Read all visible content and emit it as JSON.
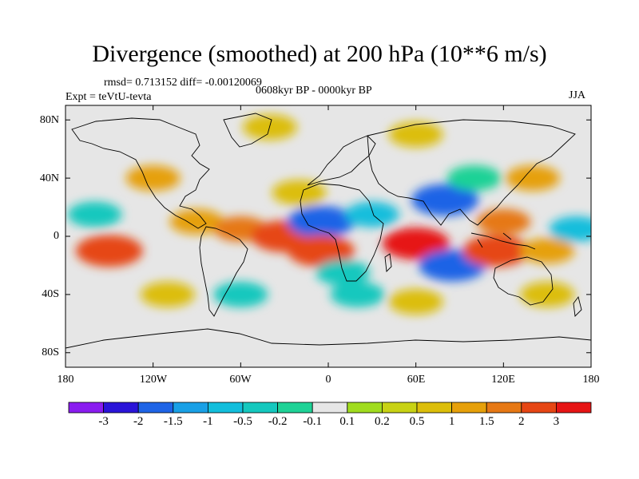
{
  "title": "Divergence (smoothed) at 200 hPa (10**6 m/s)",
  "stats": "rmsd= 0.713152 diff= -0.00120069",
  "period": "0608kyr BP - 0000kyr BP",
  "experiment": "Expt = teVtU-tevta",
  "season": "JJA",
  "lat_labels": [
    "80N",
    "40N",
    "0",
    "40S",
    "80S"
  ],
  "lon_labels": [
    "180",
    "120W",
    "60W",
    "0",
    "60E",
    "120E",
    "180"
  ],
  "colorbar": {
    "labels": [
      "-3",
      "-2",
      "-1.5",
      "-1",
      "-0.5",
      "-0.2",
      "-0.1",
      "0.1",
      "0.2",
      "0.5",
      "1",
      "1.5",
      "2",
      "3"
    ],
    "colors": [
      "#8a1cf0",
      "#2a14d8",
      "#1e64e6",
      "#19a0e6",
      "#12bedc",
      "#14c8be",
      "#1ed296",
      "#e6e6e6",
      "#a0dc1e",
      "#c8d214",
      "#dcbe0a",
      "#e6a00a",
      "#e67814",
      "#e64614",
      "#e61414"
    ]
  },
  "chart_data": {
    "type": "heatmap",
    "title": "Divergence (smoothed) at 200 hPa (10**6 m/s)",
    "xlim": [
      -180,
      180
    ],
    "ylim": [
      -90,
      90
    ],
    "levels": [
      -3,
      -2,
      -1.5,
      -1,
      -0.5,
      -0.2,
      -0.1,
      0.1,
      0.2,
      0.5,
      1,
      1.5,
      2,
      3
    ],
    "regions": [
      {
        "lon": -150,
        "lat": -10,
        "value": 2
      },
      {
        "lon": -160,
        "lat": 15,
        "value": -0.5
      },
      {
        "lon": -120,
        "lat": 40,
        "value": 1
      },
      {
        "lon": -90,
        "lat": 10,
        "value": 1
      },
      {
        "lon": -60,
        "lat": 5,
        "value": 1.5
      },
      {
        "lon": -30,
        "lat": 0,
        "value": 2
      },
      {
        "lon": -5,
        "lat": 10,
        "value": -2
      },
      {
        "lon": -5,
        "lat": -10,
        "value": 2
      },
      {
        "lon": 10,
        "lat": -25,
        "value": -0.5
      },
      {
        "lon": 30,
        "lat": 15,
        "value": -1
      },
      {
        "lon": 60,
        "lat": -5,
        "value": 3
      },
      {
        "lon": 80,
        "lat": 25,
        "value": -2
      },
      {
        "lon": 85,
        "lat": -20,
        "value": -2
      },
      {
        "lon": 115,
        "lat": -10,
        "value": 2
      },
      {
        "lon": 120,
        "lat": 10,
        "value": 1.5
      },
      {
        "lon": 150,
        "lat": -10,
        "value": 1
      },
      {
        "lon": 170,
        "lat": 5,
        "value": -1
      },
      {
        "lon": 140,
        "lat": 40,
        "value": 1
      },
      {
        "lon": -60,
        "lat": -40,
        "value": -0.5
      },
      {
        "lon": 20,
        "lat": -40,
        "value": -0.5
      },
      {
        "lon": 60,
        "lat": -45,
        "value": 0.5
      },
      {
        "lon": 150,
        "lat": -40,
        "value": 0.5
      },
      {
        "lon": -110,
        "lat": -40,
        "value": 0.5
      },
      {
        "lon": -20,
        "lat": 30,
        "value": 0.5
      },
      {
        "lon": 100,
        "lat": 40,
        "value": -0.2
      },
      {
        "lon": -40,
        "lat": 75,
        "value": 0.5
      },
      {
        "lon": 60,
        "lat": 70,
        "value": 0.5
      }
    ]
  }
}
